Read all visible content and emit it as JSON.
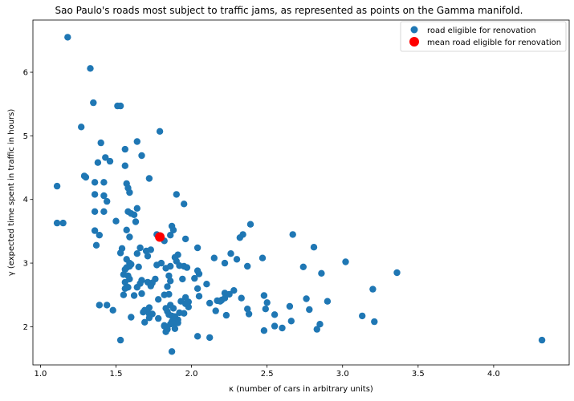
{
  "chart_data": {
    "type": "scatter",
    "title": "Sao Paulo's roads most subject to traffic jams, as represented as points on the Gamma manifold.",
    "xlabel": "κ (number of cars in arbitrary units)",
    "ylabel": "γ (expected time spent in traffic in hours)",
    "xlim": [
      0.95,
      4.5
    ],
    "ylim": [
      1.4,
      6.82
    ],
    "xticks": [
      "1.0",
      "1.5",
      "2.0",
      "2.5",
      "3.0",
      "3.5",
      "4.0"
    ],
    "yticks": [
      "2",
      "3",
      "4",
      "5",
      "6"
    ],
    "legend_position": "top-right",
    "grid": false,
    "series": [
      {
        "name": "road eligible for renovation",
        "color": "#1f77b4",
        "marker": "circle",
        "points": [
          [
            1.18,
            6.55
          ],
          [
            1.33,
            6.06
          ],
          [
            1.35,
            5.52
          ],
          [
            1.51,
            5.47
          ],
          [
            1.53,
            5.47
          ],
          [
            1.27,
            5.14
          ],
          [
            1.79,
            5.07
          ],
          [
            1.64,
            4.91
          ],
          [
            1.4,
            4.89
          ],
          [
            1.56,
            4.79
          ],
          [
            1.67,
            4.69
          ],
          [
            1.43,
            4.66
          ],
          [
            1.46,
            4.6
          ],
          [
            1.38,
            4.58
          ],
          [
            1.56,
            4.53
          ],
          [
            1.29,
            4.37
          ],
          [
            1.3,
            4.35
          ],
          [
            1.72,
            4.33
          ],
          [
            1.36,
            4.27
          ],
          [
            1.42,
            4.27
          ],
          [
            1.57,
            4.25
          ],
          [
            1.11,
            4.21
          ],
          [
            1.58,
            4.18
          ],
          [
            1.59,
            4.11
          ],
          [
            1.36,
            4.08
          ],
          [
            1.9,
            4.08
          ],
          [
            1.42,
            4.06
          ],
          [
            1.44,
            3.97
          ],
          [
            1.95,
            3.93
          ],
          [
            1.64,
            3.86
          ],
          [
            1.36,
            3.81
          ],
          [
            1.42,
            3.81
          ],
          [
            1.58,
            3.81
          ],
          [
            1.6,
            3.78
          ],
          [
            1.62,
            3.76
          ],
          [
            1.5,
            3.66
          ],
          [
            1.63,
            3.65
          ],
          [
            1.11,
            3.63
          ],
          [
            1.15,
            3.63
          ],
          [
            2.39,
            3.61
          ],
          [
            1.87,
            3.58
          ],
          [
            1.88,
            3.52
          ],
          [
            1.57,
            3.52
          ],
          [
            1.36,
            3.51
          ],
          [
            1.39,
            3.44
          ],
          [
            1.77,
            3.45
          ],
          [
            2.67,
            3.45
          ],
          [
            2.34,
            3.45
          ],
          [
            1.86,
            3.44
          ],
          [
            1.59,
            3.41
          ],
          [
            2.32,
            3.4
          ],
          [
            1.96,
            3.38
          ],
          [
            1.82,
            3.35
          ],
          [
            1.37,
            3.28
          ],
          [
            2.81,
            3.25
          ],
          [
            2.04,
            3.24
          ],
          [
            1.66,
            3.24
          ],
          [
            1.54,
            3.23
          ],
          [
            1.73,
            3.21
          ],
          [
            1.7,
            3.19
          ],
          [
            1.53,
            3.16
          ],
          [
            1.64,
            3.15
          ],
          [
            2.26,
            3.15
          ],
          [
            1.91,
            3.13
          ],
          [
            1.71,
            3.11
          ],
          [
            1.89,
            3.09
          ],
          [
            2.15,
            3.08
          ],
          [
            2.47,
            3.08
          ],
          [
            1.57,
            3.06
          ],
          [
            2.3,
            3.06
          ],
          [
            1.9,
            3.03
          ],
          [
            3.02,
            3.02
          ],
          [
            2.22,
            3.0
          ],
          [
            1.8,
            3.0
          ],
          [
            1.59,
            3.0
          ],
          [
            1.6,
            2.98
          ],
          [
            1.77,
            2.97
          ],
          [
            1.92,
            2.96
          ],
          [
            1.95,
            2.95
          ],
          [
            1.86,
            2.95
          ],
          [
            1.59,
            2.95
          ],
          [
            2.37,
            2.95
          ],
          [
            1.65,
            2.94
          ],
          [
            2.74,
            2.94
          ],
          [
            1.57,
            2.93
          ],
          [
            1.97,
            2.93
          ],
          [
            1.83,
            2.92
          ],
          [
            1.56,
            2.9
          ],
          [
            2.04,
            2.88
          ],
          [
            2.86,
            2.84
          ],
          [
            2.05,
            2.83
          ],
          [
            3.36,
            2.85
          ],
          [
            1.55,
            2.82
          ],
          [
            1.58,
            2.8
          ],
          [
            1.85,
            2.8
          ],
          [
            1.76,
            2.75
          ],
          [
            1.94,
            2.75
          ],
          [
            2.02,
            2.76
          ],
          [
            1.59,
            2.75
          ],
          [
            1.67,
            2.73
          ],
          [
            1.86,
            2.72
          ],
          [
            1.56,
            2.7
          ],
          [
            2.1,
            2.67
          ],
          [
            1.71,
            2.7
          ],
          [
            1.74,
            2.69
          ],
          [
            1.66,
            2.68
          ],
          [
            1.73,
            2.64
          ],
          [
            1.84,
            2.63
          ],
          [
            1.64,
            2.62
          ],
          [
            1.58,
            2.62
          ],
          [
            2.04,
            2.6
          ],
          [
            1.56,
            2.6
          ],
          [
            3.2,
            2.59
          ],
          [
            2.28,
            2.57
          ],
          [
            2.22,
            2.53
          ],
          [
            1.67,
            2.52
          ],
          [
            1.85,
            2.51
          ],
          [
            2.25,
            2.51
          ],
          [
            1.55,
            2.5
          ],
          [
            1.82,
            2.5
          ],
          [
            2.48,
            2.49
          ],
          [
            1.62,
            2.49
          ],
          [
            2.05,
            2.48
          ],
          [
            1.96,
            2.46
          ],
          [
            2.33,
            2.45
          ],
          [
            2.22,
            2.45
          ],
          [
            2.76,
            2.44
          ],
          [
            1.78,
            2.43
          ],
          [
            2.2,
            2.42
          ],
          [
            2.17,
            2.41
          ],
          [
            2.9,
            2.4
          ],
          [
            2.19,
            2.4
          ],
          [
            1.93,
            2.4
          ],
          [
            1.98,
            2.39
          ],
          [
            1.96,
            2.36
          ],
          [
            2.12,
            2.37
          ],
          [
            2.5,
            2.38
          ],
          [
            1.86,
            2.34
          ],
          [
            1.39,
            2.34
          ],
          [
            1.44,
            2.34
          ],
          [
            2.65,
            2.32
          ],
          [
            1.98,
            2.31
          ],
          [
            1.72,
            2.3
          ],
          [
            1.83,
            2.29
          ],
          [
            1.88,
            2.29
          ],
          [
            2.49,
            2.28
          ],
          [
            2.37,
            2.28
          ],
          [
            1.48,
            2.26
          ],
          [
            1.69,
            2.26
          ],
          [
            2.78,
            2.27
          ],
          [
            2.16,
            2.25
          ],
          [
            1.84,
            2.24
          ],
          [
            1.68,
            2.23
          ],
          [
            1.92,
            2.22
          ],
          [
            1.95,
            2.21
          ],
          [
            1.74,
            2.2
          ],
          [
            1.72,
            2.2
          ],
          [
            2.38,
            2.2
          ],
          [
            1.85,
            2.19
          ],
          [
            2.55,
            2.19
          ],
          [
            2.23,
            2.18
          ],
          [
            3.13,
            2.17
          ],
          [
            1.87,
            2.17
          ],
          [
            1.89,
            2.16
          ],
          [
            1.6,
            2.15
          ],
          [
            1.72,
            2.14
          ],
          [
            1.78,
            2.13
          ],
          [
            1.91,
            2.11
          ],
          [
            2.66,
            2.09
          ],
          [
            1.87,
            2.08
          ],
          [
            3.21,
            2.08
          ],
          [
            1.69,
            2.07
          ],
          [
            1.91,
            2.06
          ],
          [
            1.88,
            2.05
          ],
          [
            1.86,
            2.04
          ],
          [
            1.82,
            2.02
          ],
          [
            2.85,
            2.04
          ],
          [
            2.55,
            2.01
          ],
          [
            1.82,
            2.01
          ],
          [
            2.6,
            1.98
          ],
          [
            1.89,
            1.97
          ],
          [
            1.84,
            1.96
          ],
          [
            2.83,
            1.96
          ],
          [
            2.48,
            1.94
          ],
          [
            1.83,
            1.92
          ],
          [
            2.04,
            1.85
          ],
          [
            2.12,
            1.83
          ],
          [
            1.53,
            1.79
          ],
          [
            4.32,
            1.79
          ],
          [
            1.87,
            1.61
          ]
        ]
      },
      {
        "name": "mean road eligible for renovation",
        "color": "#ff0000",
        "marker": "circle",
        "points": [
          [
            1.79,
            3.41
          ]
        ]
      }
    ]
  }
}
